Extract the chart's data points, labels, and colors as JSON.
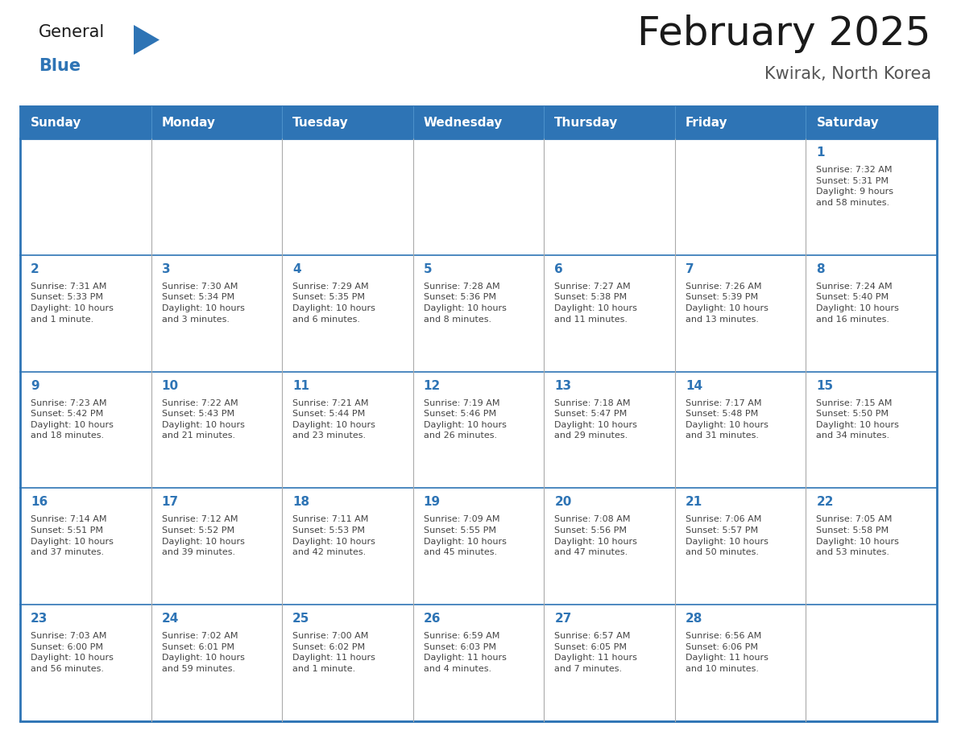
{
  "title": "February 2025",
  "subtitle": "Kwirak, North Korea",
  "days_of_week": [
    "Sunday",
    "Monday",
    "Tuesday",
    "Wednesday",
    "Thursday",
    "Friday",
    "Saturday"
  ],
  "header_bg": "#2E74B5",
  "header_text": "#FFFFFF",
  "cell_bg": "#FFFFFF",
  "border_color_outer": "#2E74B5",
  "border_color_inner": "#AAAAAA",
  "day_num_color": "#2E74B5",
  "cell_text_color": "#444444",
  "title_color": "#1a1a1a",
  "subtitle_color": "#555555",
  "logo_general_color": "#1a1a1a",
  "logo_blue_color": "#2E74B5",
  "weeks": [
    [
      {
        "day": "",
        "info": ""
      },
      {
        "day": "",
        "info": ""
      },
      {
        "day": "",
        "info": ""
      },
      {
        "day": "",
        "info": ""
      },
      {
        "day": "",
        "info": ""
      },
      {
        "day": "",
        "info": ""
      },
      {
        "day": "1",
        "info": "Sunrise: 7:32 AM\nSunset: 5:31 PM\nDaylight: 9 hours\nand 58 minutes."
      }
    ],
    [
      {
        "day": "2",
        "info": "Sunrise: 7:31 AM\nSunset: 5:33 PM\nDaylight: 10 hours\nand 1 minute."
      },
      {
        "day": "3",
        "info": "Sunrise: 7:30 AM\nSunset: 5:34 PM\nDaylight: 10 hours\nand 3 minutes."
      },
      {
        "day": "4",
        "info": "Sunrise: 7:29 AM\nSunset: 5:35 PM\nDaylight: 10 hours\nand 6 minutes."
      },
      {
        "day": "5",
        "info": "Sunrise: 7:28 AM\nSunset: 5:36 PM\nDaylight: 10 hours\nand 8 minutes."
      },
      {
        "day": "6",
        "info": "Sunrise: 7:27 AM\nSunset: 5:38 PM\nDaylight: 10 hours\nand 11 minutes."
      },
      {
        "day": "7",
        "info": "Sunrise: 7:26 AM\nSunset: 5:39 PM\nDaylight: 10 hours\nand 13 minutes."
      },
      {
        "day": "8",
        "info": "Sunrise: 7:24 AM\nSunset: 5:40 PM\nDaylight: 10 hours\nand 16 minutes."
      }
    ],
    [
      {
        "day": "9",
        "info": "Sunrise: 7:23 AM\nSunset: 5:42 PM\nDaylight: 10 hours\nand 18 minutes."
      },
      {
        "day": "10",
        "info": "Sunrise: 7:22 AM\nSunset: 5:43 PM\nDaylight: 10 hours\nand 21 minutes."
      },
      {
        "day": "11",
        "info": "Sunrise: 7:21 AM\nSunset: 5:44 PM\nDaylight: 10 hours\nand 23 minutes."
      },
      {
        "day": "12",
        "info": "Sunrise: 7:19 AM\nSunset: 5:46 PM\nDaylight: 10 hours\nand 26 minutes."
      },
      {
        "day": "13",
        "info": "Sunrise: 7:18 AM\nSunset: 5:47 PM\nDaylight: 10 hours\nand 29 minutes."
      },
      {
        "day": "14",
        "info": "Sunrise: 7:17 AM\nSunset: 5:48 PM\nDaylight: 10 hours\nand 31 minutes."
      },
      {
        "day": "15",
        "info": "Sunrise: 7:15 AM\nSunset: 5:50 PM\nDaylight: 10 hours\nand 34 minutes."
      }
    ],
    [
      {
        "day": "16",
        "info": "Sunrise: 7:14 AM\nSunset: 5:51 PM\nDaylight: 10 hours\nand 37 minutes."
      },
      {
        "day": "17",
        "info": "Sunrise: 7:12 AM\nSunset: 5:52 PM\nDaylight: 10 hours\nand 39 minutes."
      },
      {
        "day": "18",
        "info": "Sunrise: 7:11 AM\nSunset: 5:53 PM\nDaylight: 10 hours\nand 42 minutes."
      },
      {
        "day": "19",
        "info": "Sunrise: 7:09 AM\nSunset: 5:55 PM\nDaylight: 10 hours\nand 45 minutes."
      },
      {
        "day": "20",
        "info": "Sunrise: 7:08 AM\nSunset: 5:56 PM\nDaylight: 10 hours\nand 47 minutes."
      },
      {
        "day": "21",
        "info": "Sunrise: 7:06 AM\nSunset: 5:57 PM\nDaylight: 10 hours\nand 50 minutes."
      },
      {
        "day": "22",
        "info": "Sunrise: 7:05 AM\nSunset: 5:58 PM\nDaylight: 10 hours\nand 53 minutes."
      }
    ],
    [
      {
        "day": "23",
        "info": "Sunrise: 7:03 AM\nSunset: 6:00 PM\nDaylight: 10 hours\nand 56 minutes."
      },
      {
        "day": "24",
        "info": "Sunrise: 7:02 AM\nSunset: 6:01 PM\nDaylight: 10 hours\nand 59 minutes."
      },
      {
        "day": "25",
        "info": "Sunrise: 7:00 AM\nSunset: 6:02 PM\nDaylight: 11 hours\nand 1 minute."
      },
      {
        "day": "26",
        "info": "Sunrise: 6:59 AM\nSunset: 6:03 PM\nDaylight: 11 hours\nand 4 minutes."
      },
      {
        "day": "27",
        "info": "Sunrise: 6:57 AM\nSunset: 6:05 PM\nDaylight: 11 hours\nand 7 minutes."
      },
      {
        "day": "28",
        "info": "Sunrise: 6:56 AM\nSunset: 6:06 PM\nDaylight: 11 hours\nand 10 minutes."
      },
      {
        "day": "",
        "info": ""
      }
    ]
  ]
}
